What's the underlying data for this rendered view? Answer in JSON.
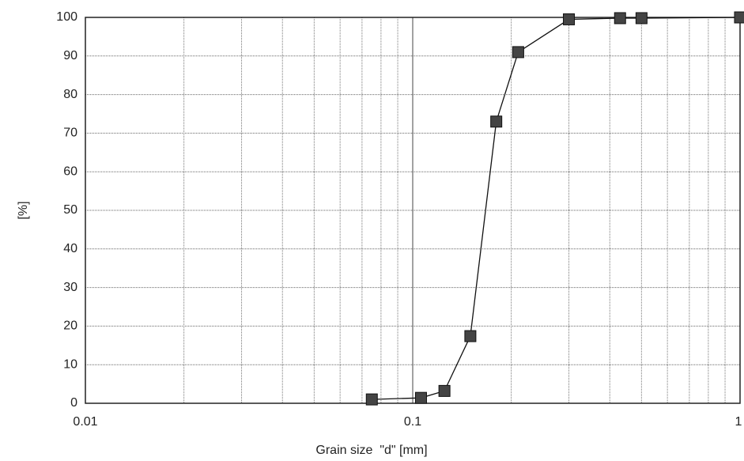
{
  "chart_data": {
    "type": "line",
    "xlabel": "Grain size  \"d\" [mm]",
    "ylabel": "[%]",
    "x": [
      0.075,
      0.106,
      0.125,
      0.15,
      0.18,
      0.21,
      0.3,
      0.43,
      0.5,
      1
    ],
    "series": [
      {
        "color": "#444444",
        "values": [
          1,
          1.4,
          3.2,
          17.4,
          73,
          91,
          99.5,
          99.8,
          99.8,
          100
        ]
      }
    ],
    "xlim": [
      0.01,
      1
    ],
    "xticks": [
      0.01,
      0.1,
      1
    ],
    "xscale": "log",
    "ylim": [
      0,
      100
    ],
    "yticks": [
      0,
      10,
      20,
      30,
      40,
      50,
      60,
      70,
      80,
      90,
      100
    ],
    "grid": true,
    "minor_grid": true
  }
}
